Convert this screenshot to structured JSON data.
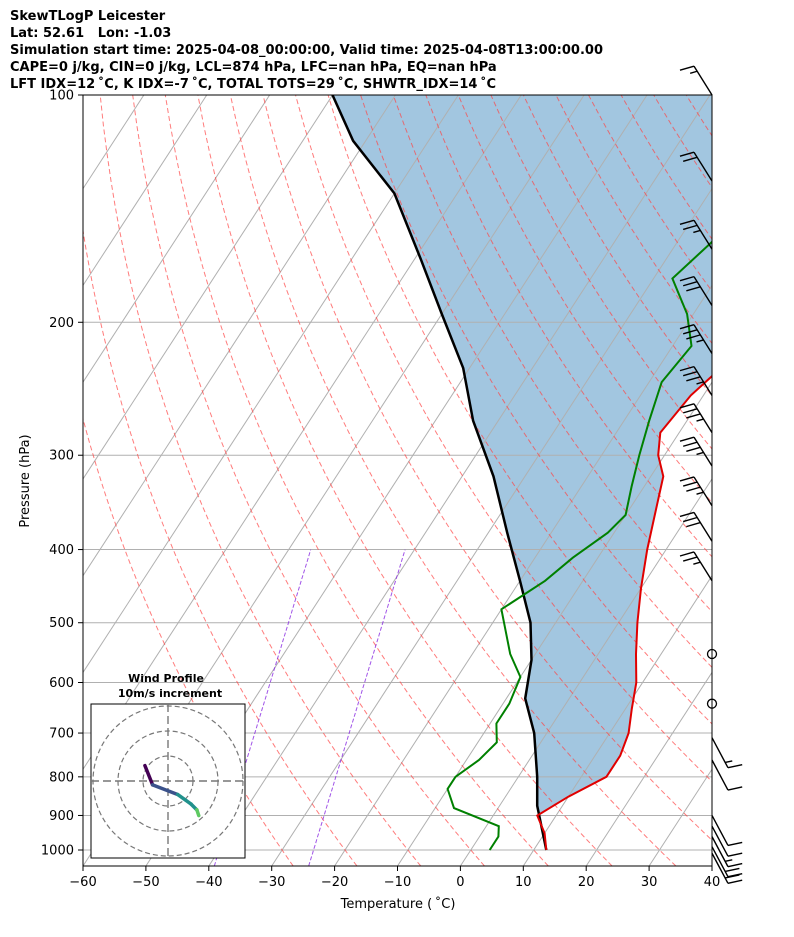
{
  "header": {
    "line1": "SkewTLogP Leicester",
    "line2": "Lat: 52.61   Lon: -1.03",
    "line3": "Simulation start time: 2025-04-08_00:00:00, Valid time: 2025-04-08T13:00:00.00",
    "line4": "CAPE=0 j/kg, CIN=0 j/kg, LCL=874 hPa, LFC=nan hPa, EQ=nan hPa",
    "line5": "LFT IDX=12 ˚C, K IDX=-7 ˚C, TOTAL TOTS=29 ˚C, SHWTR_IDX=14 ˚C"
  },
  "chart_data": [
    {
      "type": "line",
      "subtype": "skew-t log-p",
      "xlabel": "Temperature ( ˚C)",
      "ylabel": "Pressure (hPa)",
      "xlim": [
        -60,
        40
      ],
      "ylim": [
        1050,
        100
      ],
      "y_scale": "log",
      "x_ticks": [
        -60,
        -50,
        -40,
        -30,
        -20,
        -10,
        0,
        10,
        20,
        30,
        40
      ],
      "y_ticks": [
        1000,
        900,
        800,
        700,
        600,
        500,
        400,
        300,
        200,
        100
      ],
      "grid": true,
      "series": [
        {
          "role": "temperature",
          "color": "#e00000",
          "points": [
            [
              12,
              1000
            ],
            [
              10,
              950
            ],
            [
              7,
              900
            ],
            [
              10,
              850
            ],
            [
              14,
              800
            ],
            [
              14,
              750
            ],
            [
              13,
              700
            ],
            [
              11,
              650
            ],
            [
              9,
              600
            ],
            [
              6,
              550
            ],
            [
              3,
              500
            ],
            [
              0,
              450
            ],
            [
              -3,
              400
            ],
            [
              -6,
              350
            ],
            [
              -8,
              320
            ],
            [
              -11,
              300
            ],
            [
              -13,
              280
            ],
            [
              -12,
              250
            ],
            [
              -9,
              220
            ],
            [
              -5,
              200
            ],
            [
              -1,
              180
            ],
            [
              3,
              160
            ],
            [
              6,
              140
            ],
            [
              9,
              120
            ],
            [
              10,
              110
            ],
            [
              12,
              100
            ]
          ]
        },
        {
          "role": "dewpoint",
          "color": "#008000",
          "points": [
            [
              3,
              1000
            ],
            [
              3,
              960
            ],
            [
              2,
              930
            ],
            [
              -7,
              880
            ],
            [
              -10,
              830
            ],
            [
              -10,
              800
            ],
            [
              -8,
              760
            ],
            [
              -7,
              720
            ],
            [
              -9,
              680
            ],
            [
              -9,
              640
            ],
            [
              -10,
              590
            ],
            [
              -14,
              550
            ],
            [
              -20,
              480
            ],
            [
              -16,
              440
            ],
            [
              -14,
              410
            ],
            [
              -11,
              380
            ],
            [
              -10,
              360
            ],
            [
              -12,
              330
            ],
            [
              -14,
              300
            ],
            [
              -16,
              270
            ],
            [
              -18,
              240
            ],
            [
              -17,
              215
            ],
            [
              -21,
              195
            ],
            [
              -27,
              175
            ],
            [
              -22,
              140
            ],
            [
              -14,
              115
            ],
            [
              -10,
              100
            ]
          ]
        },
        {
          "role": "parcel",
          "color": "#000000",
          "points": [
            [
              12,
              1000
            ],
            [
              6,
              874
            ],
            [
              3,
              800
            ],
            [
              -2,
              700
            ],
            [
              -7,
              630
            ],
            [
              -10,
              560
            ],
            [
              -14,
              500
            ],
            [
              -20,
              440
            ],
            [
              -27,
              380
            ],
            [
              -35,
              320
            ],
            [
              -44,
              270
            ],
            [
              -51,
              230
            ],
            [
              -60,
              195
            ],
            [
              -69,
              165
            ],
            [
              -80,
              135
            ],
            [
              -92,
              115
            ],
            [
              -100,
              100
            ]
          ]
        }
      ],
      "shading": {
        "between": [
          "temperature",
          "parcel"
        ],
        "color": "#a2c6e0"
      },
      "dry_adiabats": {
        "color": "#ff4444"
      },
      "moist_adiabats": {
        "color": "#3d47ff"
      },
      "mixing_ratios": {
        "color": "#8a2be2"
      },
      "wind_barbs": {
        "pressures": [
          100,
          130,
          160,
          190,
          220,
          250,
          280,
          310,
          350,
          390,
          440,
          550,
          640,
          710,
          760,
          900,
          930,
          960,
          990,
          1010
        ],
        "speeds_kt": [
          15,
          20,
          25,
          30,
          35,
          35,
          35,
          35,
          35,
          30,
          25,
          0,
          0,
          15,
          10,
          10,
          10,
          15,
          20,
          20
        ]
      }
    },
    {
      "type": "hodograph",
      "title": "Wind Profile",
      "subtitle": "10m/s increment",
      "rings": [
        1,
        2,
        3
      ],
      "points": [
        [
          -1.2,
          0.8
        ],
        [
          -0.8,
          -0.2
        ],
        [
          0.5,
          -0.7
        ],
        [
          1.2,
          -1.2
        ],
        [
          1.5,
          -1.5
        ],
        [
          1.6,
          -1.8
        ]
      ]
    }
  ]
}
